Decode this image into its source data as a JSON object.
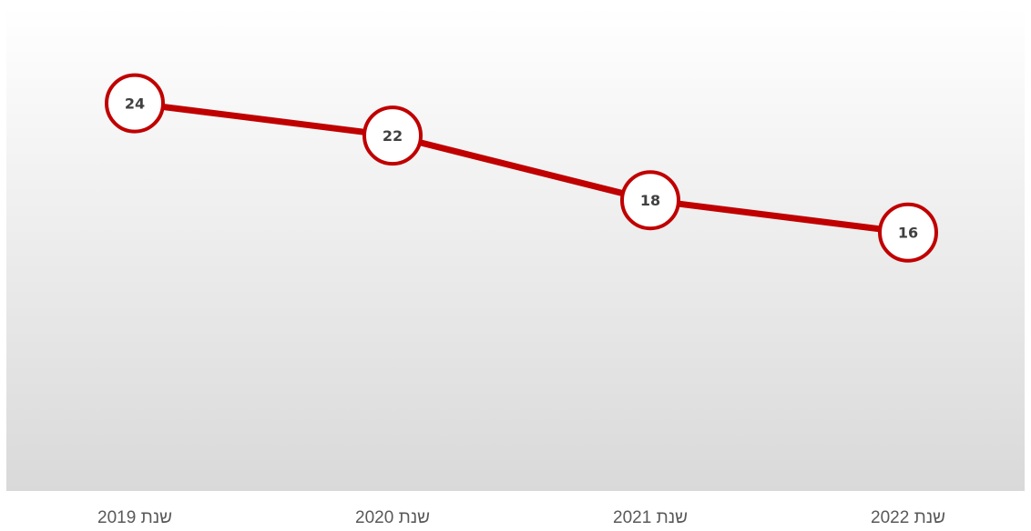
{
  "chart_data": {
    "type": "line",
    "categories": [
      "שנת 2019",
      "שנת 2020",
      "שנת 2021",
      "שנת 2022"
    ],
    "series": [
      {
        "values": [
          24,
          22,
          18,
          16
        ]
      }
    ],
    "title": "",
    "xlabel": "",
    "ylabel": "",
    "ylim": [
      0,
      30
    ],
    "grid": false,
    "legend": "none",
    "colors": {
      "line": "#c00000",
      "marker_fill": "#ffffff",
      "plot_bg_top": "#ffffff",
      "plot_bg_bottom": "#d9d9d9",
      "label_text": "#404040",
      "tick_text": "#595959"
    }
  }
}
